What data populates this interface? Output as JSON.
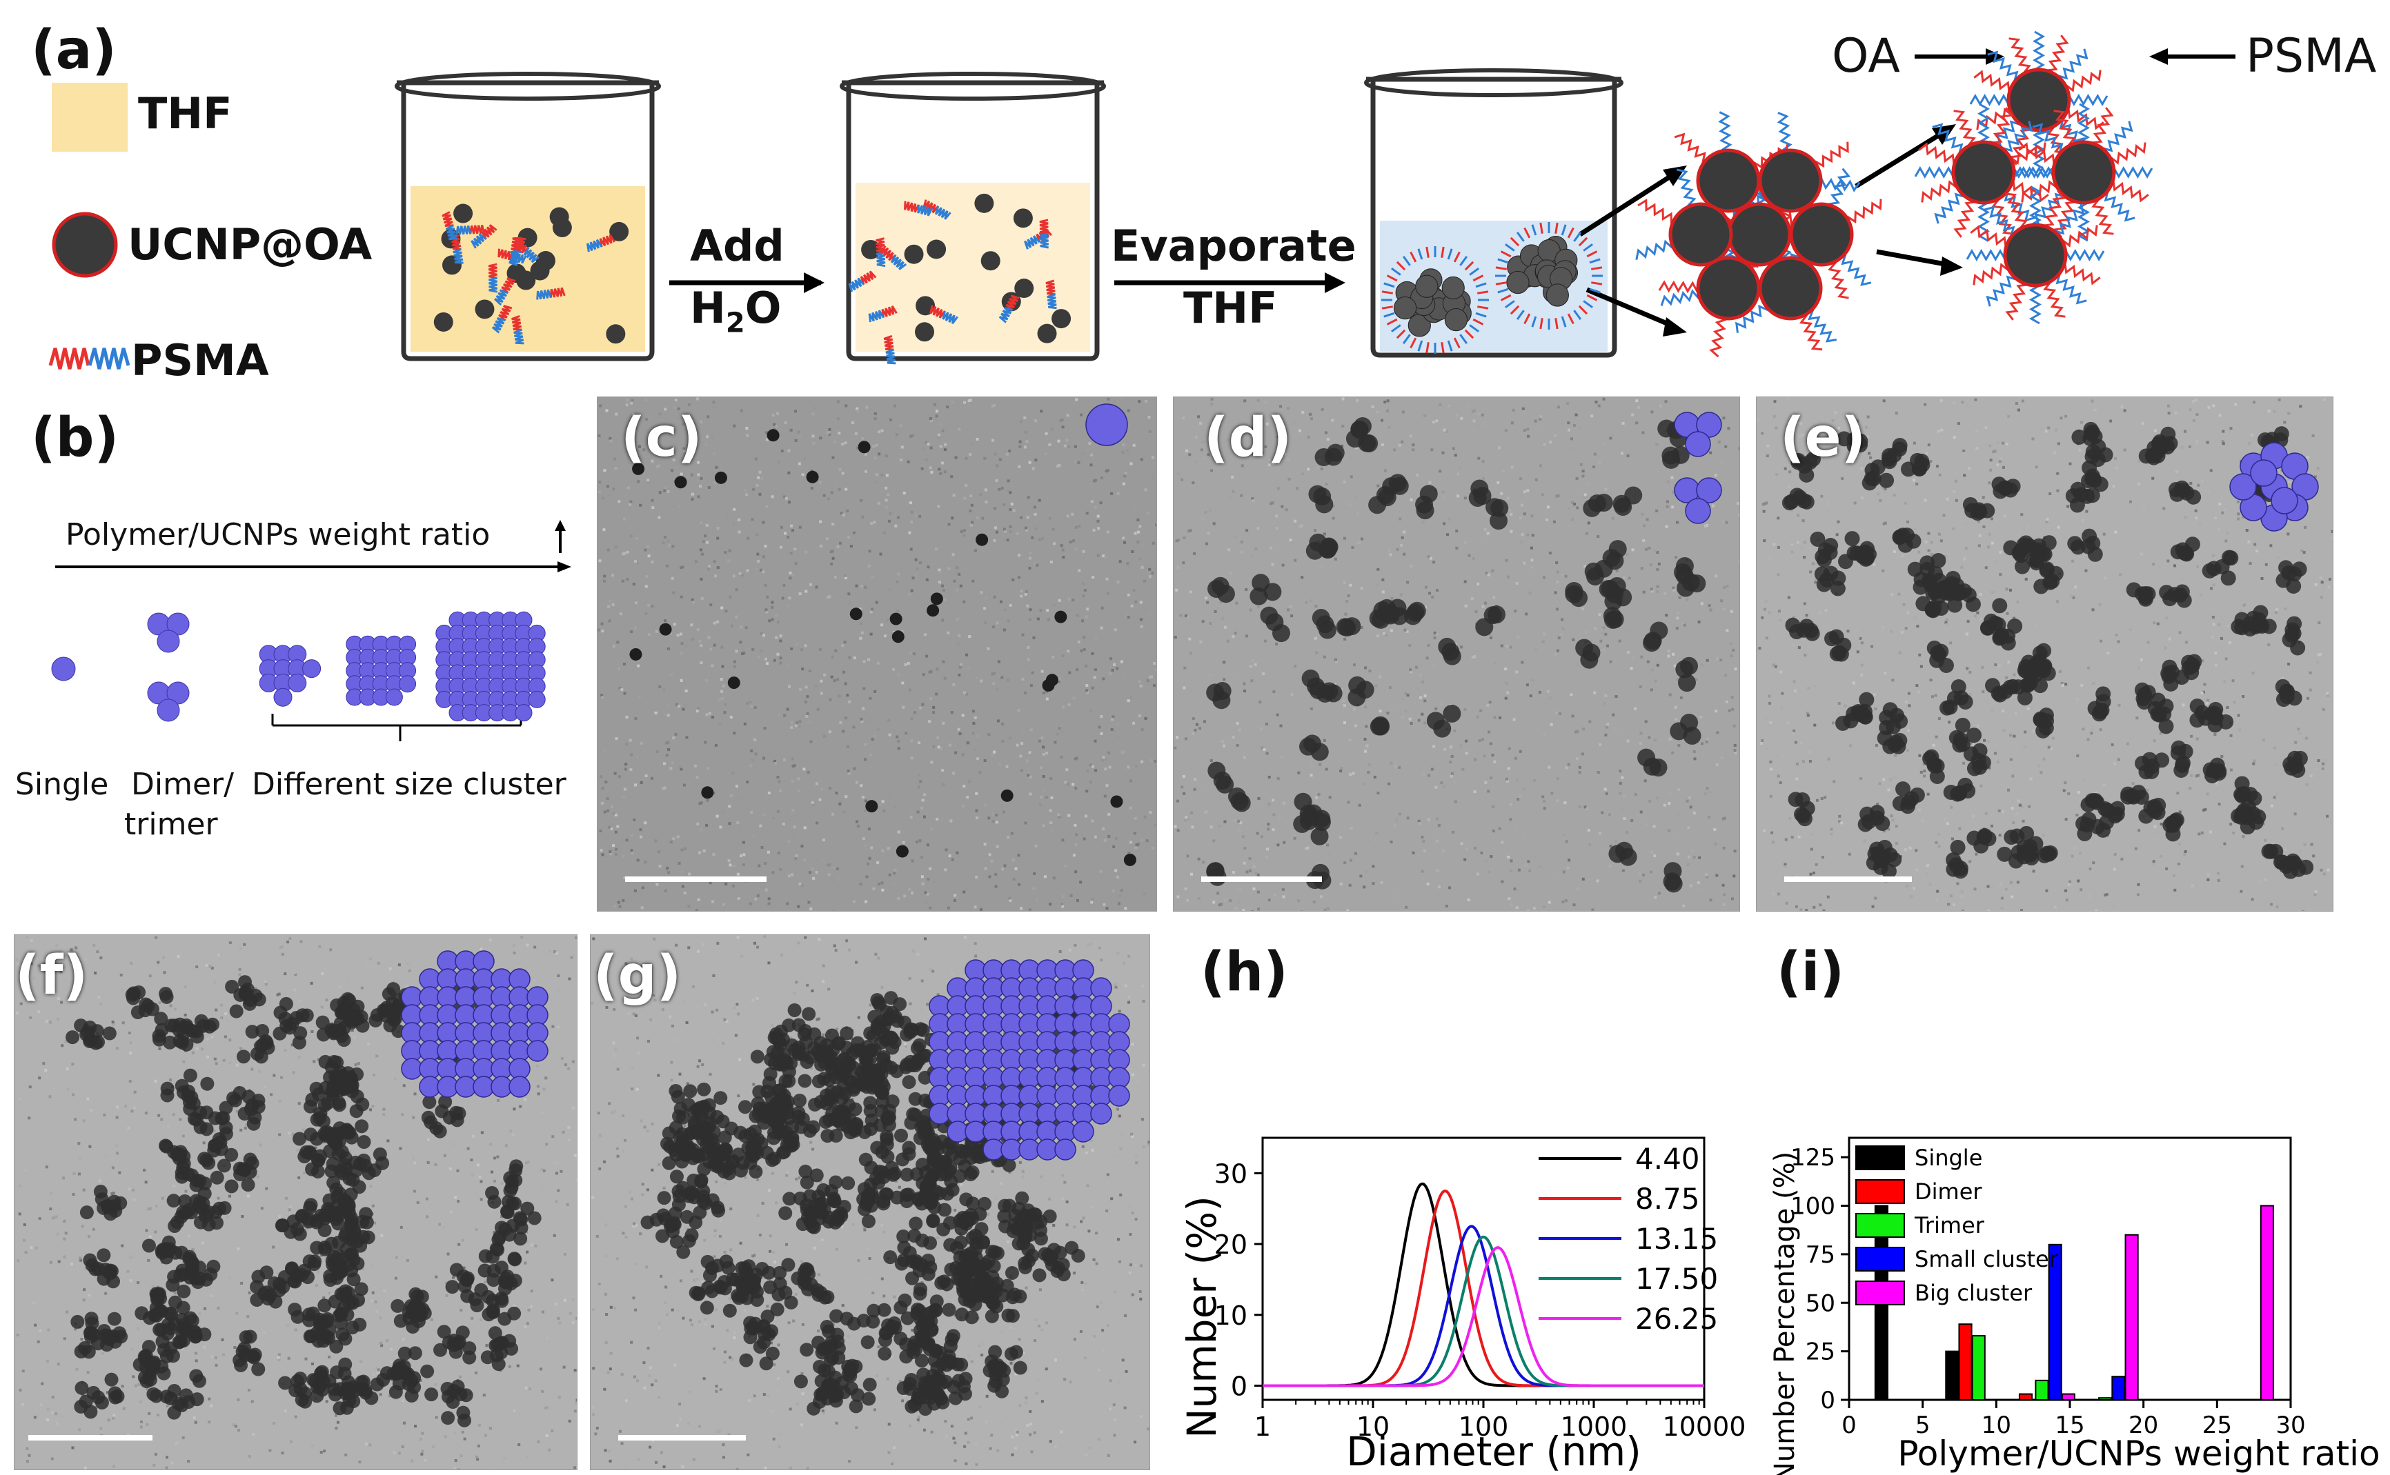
{
  "panel_labels": {
    "a": "(a)",
    "b": "(b)",
    "c": "(c)",
    "d": "(d)",
    "e": "(e)",
    "f": "(f)",
    "g": "(g)",
    "h": "(h)",
    "i": "(i)"
  },
  "legend": {
    "thf": "THF",
    "ucnp": "UCNP@OA",
    "psma": "PSMA"
  },
  "steps": {
    "add_top": "Add",
    "add_bottom": "H",
    "add_sub": "2",
    "add_tail": "O",
    "evap_top": "Evaporate",
    "evap_bottom": "THF"
  },
  "callouts": {
    "oa": "OA",
    "psma": "PSMA"
  },
  "panel_b": {
    "axis_label": "Polymer/UCNPs weight ratio",
    "single": "Single",
    "dimer": "Dimer/",
    "trimer": "trimer",
    "cluster": "Different size cluster"
  },
  "colors": {
    "thf": "#fbe3a6",
    "particle": "#3a3a3a",
    "particle_edge": "#d42020",
    "chain_red": "#e8322f",
    "chain_blue": "#2f7fd6",
    "sphere": "#6a62e0",
    "water": "#d6e6f5"
  },
  "chart_data": [
    {
      "type": "line",
      "xlabel": "Diameter (nm)",
      "ylabel": "Number (%)",
      "xscale": "log",
      "xlim": [
        1,
        10000
      ],
      "ylim": [
        -2,
        35
      ],
      "xticks": [
        "1",
        "10",
        "100",
        "1000",
        "10000"
      ],
      "yticks": [
        "0",
        "10",
        "20",
        "30"
      ],
      "legend_position": "top-right",
      "series": [
        {
          "name": "4.40",
          "color": "#000000",
          "peak_x": 28,
          "peak_y": 28.5
        },
        {
          "name": "8.75",
          "color": "#e8191c",
          "peak_x": 45,
          "peak_y": 27.5
        },
        {
          "name": "13.15",
          "color": "#1010d8",
          "peak_x": 78,
          "peak_y": 22.5
        },
        {
          "name": "17.50",
          "color": "#0a7f6a",
          "peak_x": 100,
          "peak_y": 21
        },
        {
          "name": "26.25",
          "color": "#ee22ee",
          "peak_x": 135,
          "peak_y": 19.5
        }
      ]
    },
    {
      "type": "bar",
      "xlabel": "Polymer/UCNPs weight ratio",
      "ylabel": "Number Percentage (%)",
      "xlim": [
        0,
        30
      ],
      "ylim": [
        0,
        135
      ],
      "xticks": [
        "0",
        "5",
        "10",
        "15",
        "20",
        "25",
        "30"
      ],
      "yticks": [
        "0",
        "25",
        "50",
        "75",
        "100",
        "125"
      ],
      "legend_position": "top-left",
      "series": [
        {
          "name": "Single",
          "color": "#000000",
          "points": [
            [
              2.2,
              100
            ],
            [
              7.0,
              25
            ]
          ]
        },
        {
          "name": "Dimer",
          "color": "#ff0000",
          "points": [
            [
              7.9,
              39
            ],
            [
              12.0,
              3
            ]
          ]
        },
        {
          "name": "Trimer",
          "color": "#10ee10",
          "points": [
            [
              8.8,
              33
            ],
            [
              13.1,
              10
            ],
            [
              17.4,
              1
            ]
          ]
        },
        {
          "name": "Small cluster",
          "color": "#0000ff",
          "points": [
            [
              14.0,
              80
            ],
            [
              18.3,
              12
            ]
          ]
        },
        {
          "name": "Big cluster",
          "color": "#ff00ff",
          "points": [
            [
              14.9,
              3
            ],
            [
              19.2,
              85
            ],
            [
              28.4,
              100
            ]
          ]
        }
      ]
    }
  ]
}
